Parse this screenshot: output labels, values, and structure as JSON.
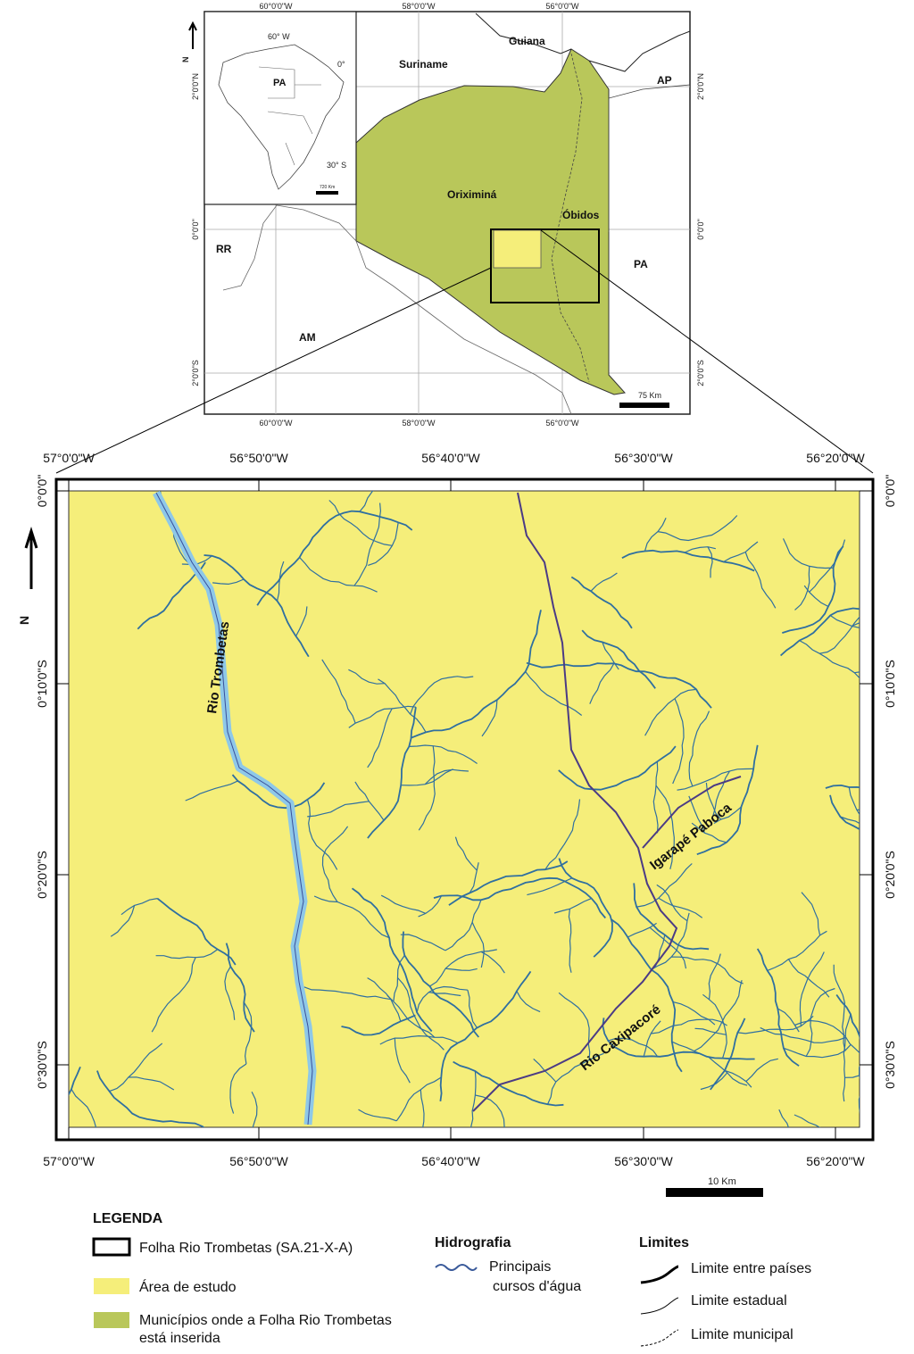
{
  "inset_map": {
    "north": "N",
    "lon_labels": [
      "60°0'0\"W",
      "58°0'0\"W",
      "56°0'0\"W"
    ],
    "lat_labels": [
      "2°0'0\"N",
      "0°0'0\"",
      "2°0'0\"S"
    ],
    "places": {
      "suriname": "Suriname",
      "guiana": "Guiana",
      "ap": "AP",
      "oriximina": "Oriximiná",
      "obidos": "Óbidos",
      "rr": "RR",
      "pa": "PA",
      "am": "AM"
    },
    "brazil": {
      "lon": "60° W",
      "equator": "0°",
      "lat": "30° S",
      "state": "PA",
      "scale": "720 Km"
    },
    "scale": "75 Km"
  },
  "main_map": {
    "north": "N",
    "lon_labels": [
      "57°0'0\"W",
      "56°50'0\"W",
      "56°40'0\"W",
      "56°30'0\"W",
      "56°20'0\"W"
    ],
    "lat_labels": [
      "0°0'0\"",
      "0°10'0\"S",
      "0°20'0\"S",
      "0°30'0\"S"
    ],
    "rivers": {
      "trombetas": "Rio Trombetas",
      "paboca": "Igarapé Paboca",
      "caxipacore": "Rio Caxipacoré"
    },
    "scale": "10 Km"
  },
  "legend": {
    "title": "LEGENDA",
    "sheet": "Folha Rio Trombetas (SA.21-X-A)",
    "study_area": "Área de estudo",
    "municipalities": [
      "Municípios onde a Folha Rio Trombetas",
      "está inserida"
    ],
    "hydro_title": "Hidrografia",
    "hydro_item": [
      "Principais",
      "cursos d'água"
    ],
    "limits_title": "Limites",
    "limits": [
      "Limite entre países",
      "Limite estadual",
      "Limite municipal"
    ]
  }
}
